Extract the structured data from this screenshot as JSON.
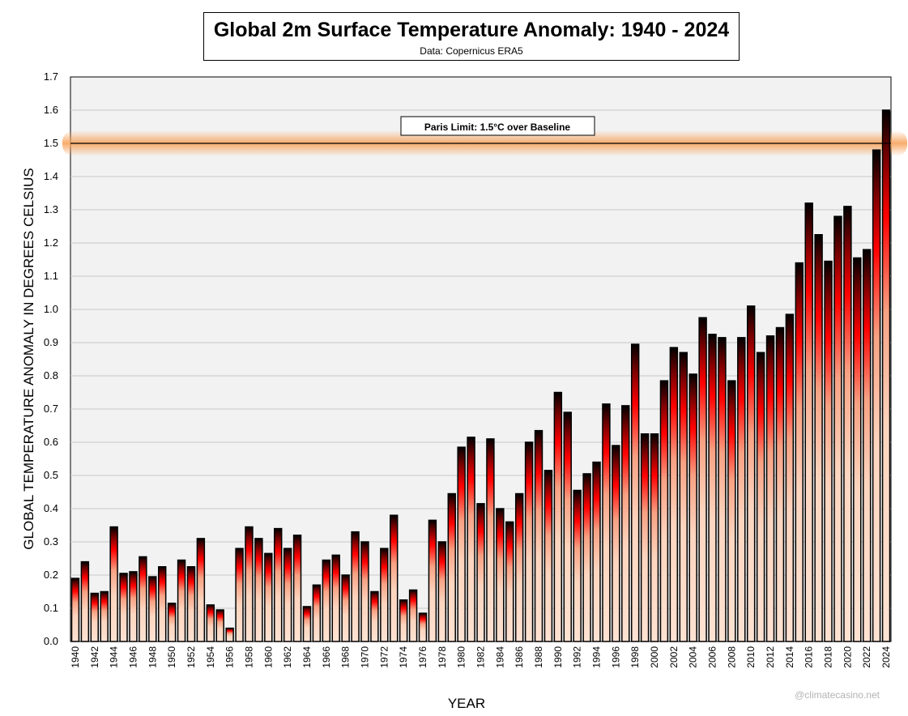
{
  "title": "Global 2m Surface Temperature Anomaly: 1940 - 2024",
  "subtitle": "Data: Copernicus ERA5",
  "watermark": "@climatecasino.net",
  "colors": {
    "plot_background": "#f2f2f2",
    "gridline": "#c8c8c8",
    "bar_dark": "#000000",
    "bar_red": "#ff0000",
    "bar_light": "#fde0cf",
    "paris_glow": "#f7a35c"
  },
  "chart_data": {
    "type": "bar",
    "title": "Global 2m Surface Temperature Anomaly: 1940 - 2024",
    "subtitle": "Data: Copernicus ERA5",
    "xlabel": "YEAR",
    "ylabel": "GLOBAL TEMPERATURE ANOMALY IN DEGREES CELSIUS",
    "ylim": [
      0,
      1.7
    ],
    "yticks": [
      "0.0",
      "0.1",
      "0.2",
      "0.3",
      "0.4",
      "0.5",
      "0.6",
      "0.7",
      "0.8",
      "0.9",
      "1.0",
      "1.1",
      "1.2",
      "1.3",
      "1.4",
      "1.5",
      "1.6",
      "1.7"
    ],
    "grid": true,
    "categories": [
      1940,
      1941,
      1942,
      1943,
      1944,
      1945,
      1946,
      1947,
      1948,
      1949,
      1950,
      1951,
      1952,
      1953,
      1954,
      1955,
      1956,
      1957,
      1958,
      1959,
      1960,
      1961,
      1962,
      1963,
      1964,
      1965,
      1966,
      1967,
      1968,
      1969,
      1970,
      1971,
      1972,
      1973,
      1974,
      1975,
      1976,
      1977,
      1978,
      1979,
      1980,
      1981,
      1982,
      1983,
      1984,
      1985,
      1986,
      1987,
      1988,
      1989,
      1990,
      1991,
      1992,
      1993,
      1994,
      1995,
      1996,
      1997,
      1998,
      1999,
      2000,
      2001,
      2002,
      2003,
      2004,
      2005,
      2006,
      2007,
      2008,
      2009,
      2010,
      2011,
      2012,
      2013,
      2014,
      2015,
      2016,
      2017,
      2018,
      2019,
      2020,
      2021,
      2022,
      2023,
      2024
    ],
    "xtick_labels": [
      "1940",
      "1942",
      "1944",
      "1946",
      "1948",
      "1950",
      "1952",
      "1954",
      "1956",
      "1958",
      "1960",
      "1962",
      "1964",
      "1966",
      "1968",
      "1970",
      "1972",
      "1974",
      "1976",
      "1978",
      "1980",
      "1982",
      "1984",
      "1986",
      "1988",
      "1990",
      "1992",
      "1994",
      "1996",
      "1998",
      "2000",
      "2002",
      "2004",
      "2006",
      "2008",
      "2010",
      "2012",
      "2014",
      "2016",
      "2018",
      "2020",
      "2022",
      "2024"
    ],
    "values": [
      0.19,
      0.24,
      0.145,
      0.15,
      0.345,
      0.205,
      0.21,
      0.255,
      0.195,
      0.225,
      0.115,
      0.245,
      0.225,
      0.31,
      0.11,
      0.095,
      0.04,
      0.28,
      0.345,
      0.31,
      0.265,
      0.34,
      0.28,
      0.32,
      0.105,
      0.17,
      0.245,
      0.26,
      0.2,
      0.33,
      0.3,
      0.15,
      0.28,
      0.38,
      0.125,
      0.155,
      0.085,
      0.365,
      0.3,
      0.445,
      0.585,
      0.615,
      0.415,
      0.61,
      0.4,
      0.36,
      0.445,
      0.6,
      0.635,
      0.515,
      0.75,
      0.69,
      0.455,
      0.505,
      0.54,
      0.715,
      0.59,
      0.71,
      0.895,
      0.625,
      0.625,
      0.785,
      0.885,
      0.87,
      0.805,
      0.975,
      0.925,
      0.915,
      0.785,
      0.915,
      1.01,
      0.87,
      0.92,
      0.945,
      0.985,
      1.14,
      1.32,
      1.225,
      1.145,
      1.28,
      1.31,
      1.155,
      1.18,
      1.48,
      1.6
    ],
    "reference_line": {
      "value": 1.5,
      "label": "Paris Limit: 1.5°C over Baseline"
    }
  }
}
